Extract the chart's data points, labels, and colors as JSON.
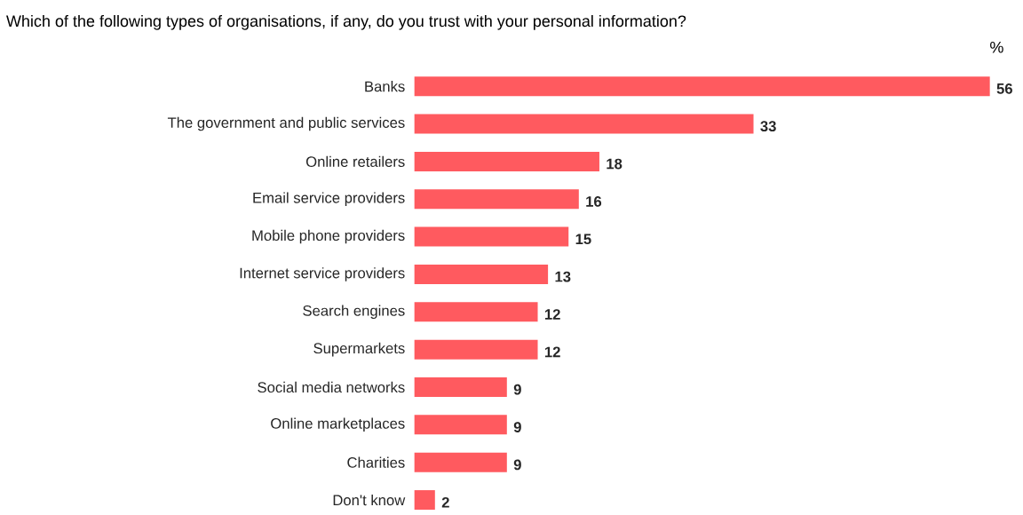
{
  "chart_data": {
    "type": "bar",
    "orientation": "horizontal",
    "title": "Which of the following types of organisations, if any, do you trust with your personal information?",
    "annotations": [
      "%"
    ],
    "categories": [
      "Banks",
      "The government and public services",
      "Online retailers",
      "Email service providers",
      "Mobile phone providers",
      "Internet service providers",
      "Search engines",
      "Supermarkets",
      "Social media networks",
      "Online marketplaces",
      "Charities",
      "Don't know"
    ],
    "values": [
      56,
      33,
      18,
      16,
      15,
      13,
      12,
      12,
      9,
      9,
      9,
      2
    ],
    "color": "#ff5a5f",
    "data_labels": true
  }
}
